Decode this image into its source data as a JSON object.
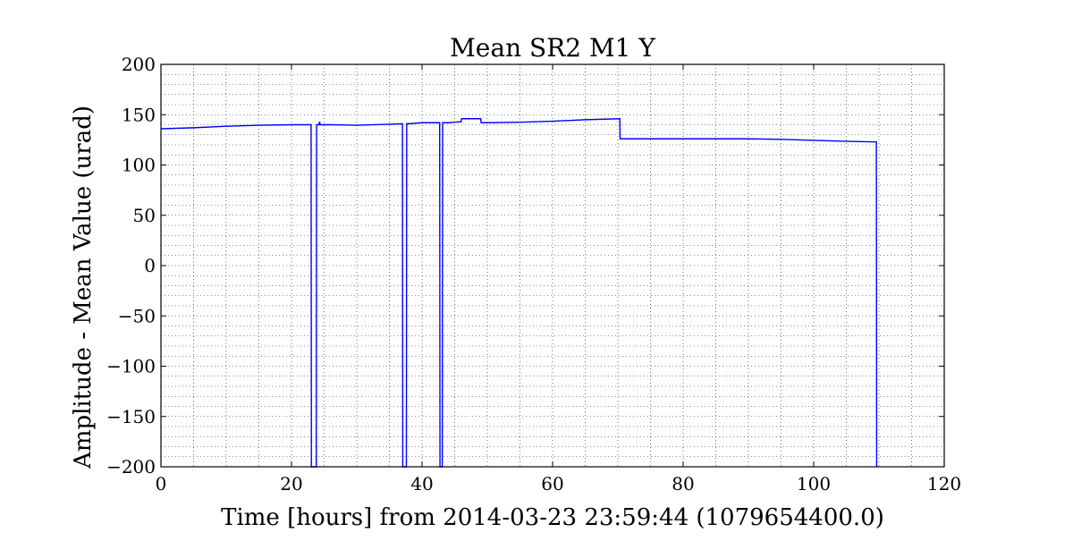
{
  "chart_data": {
    "type": "line",
    "title": "Mean SR2 M1 Y",
    "xlabel": "Time [hours] from 2014-03-23 23:59:44 (1079654400.0)",
    "ylabel": "Amplitude - Mean Value (urad)",
    "xlim": [
      0,
      120
    ],
    "ylim": [
      -200,
      200
    ],
    "xticks": [
      0,
      20,
      40,
      60,
      80,
      100,
      120
    ],
    "yticks": [
      -200,
      -150,
      -100,
      -50,
      0,
      50,
      100,
      150,
      200
    ],
    "xtick_labels": [
      "0",
      "20",
      "40",
      "60",
      "80",
      "100",
      "120"
    ],
    "ytick_labels": [
      "−200",
      "−150",
      "−100",
      "−50",
      "0",
      "50",
      "100",
      "150",
      "200"
    ],
    "grid": true,
    "series": [
      {
        "color": "#0000ff",
        "x": [
          0,
          5,
          10,
          15,
          20,
          23.0,
          23.05,
          23.8,
          23.85,
          24.2,
          24.3,
          24.4,
          26,
          30,
          35,
          37.0,
          37.05,
          37.6,
          37.65,
          38,
          40,
          42.7,
          42.75,
          43.1,
          43.15,
          44,
          46.0,
          46.05,
          49.0,
          49.05,
          50,
          55,
          60,
          65,
          70.3,
          70.35,
          75,
          80,
          90,
          95,
          100,
          105,
          109.6,
          109.65
        ],
        "y": [
          136,
          137,
          138.5,
          139.5,
          140,
          140,
          -200,
          -200,
          140,
          140,
          143,
          140,
          140,
          139.5,
          140.5,
          141,
          -200,
          -200,
          141,
          141,
          142,
          142,
          -200,
          -200,
          142,
          142,
          143,
          146,
          146,
          142,
          142,
          142.5,
          143.5,
          145,
          146,
          126,
          126,
          126,
          126,
          125.5,
          124.5,
          123.5,
          123,
          -200
        ]
      }
    ]
  }
}
